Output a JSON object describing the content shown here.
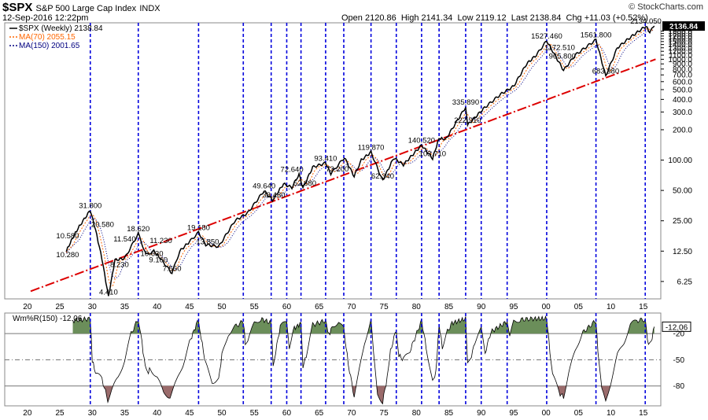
{
  "header": {
    "symbol": "$SPX",
    "name": "S&P 500 Large Cap Index",
    "exchange": "INDX",
    "date": "12-Sep-2016 12:22pm",
    "open": "Open 2120.86",
    "high": "High 2141.34",
    "low": "Low 2119.12",
    "last": "Last 2138.84",
    "chg": "Chg +11.03 (+0.52%)",
    "up_arrow": "▲",
    "brand": "© StockCharts.com"
  },
  "legend": [
    {
      "text": "$SPX (Weekly) 2138.84",
      "color": "#000000"
    },
    {
      "text": "MA(70) 2055.15",
      "color": "#ff6600"
    },
    {
      "text": "MA(150) 2001.65",
      "color": "#000080"
    }
  ],
  "indicator": {
    "label": "Wm%R(150) -12.06",
    "value_box": "-12.06",
    "fill_color": "#6b8e5a",
    "low_fill_color": "#9a6b6b"
  },
  "colors": {
    "vline": "#0000dd",
    "trend": "#dd0000",
    "price": "#000000",
    "ma70": "#ff6600",
    "ma150": "#000080"
  },
  "chart_data": [
    {
      "type": "line",
      "title": "$SPX S&P 500 Large Cap Index INDX",
      "y_scale": "log",
      "ylim": [
        4.2,
        2300
      ],
      "y_ticks": [
        "2136.84",
        "1900.0",
        "1800.0",
        "1700.0",
        "1600.0",
        "1500.0",
        "1400.0",
        "1300.0",
        "1200.0",
        "1100.0",
        "1000.0",
        "900.0",
        "800.0",
        "700.0",
        "600.0",
        "500.0",
        "400.0",
        "300.0",
        "200.0",
        "100.00",
        "50.00",
        "25.00",
        "12.50",
        "6.25"
      ],
      "y_tick_values": [
        2136.84,
        1900,
        1800,
        1700,
        1600,
        1500,
        1400,
        1300,
        1200,
        1100,
        1000,
        900,
        800,
        700,
        600,
        500,
        400,
        300,
        200,
        100,
        50,
        25,
        12.5,
        6.25
      ],
      "x_tick_labels": [
        "20",
        "25",
        "30",
        "35",
        "40",
        "45",
        "50",
        "55",
        "60",
        "65",
        "70",
        "75",
        "80",
        "85",
        "90",
        "95",
        "00",
        "05",
        "10",
        "15"
      ],
      "x_tick_years": [
        1920,
        1925,
        1930,
        1935,
        1940,
        1945,
        1950,
        1955,
        1960,
        1965,
        1970,
        1975,
        1980,
        1985,
        1990,
        1995,
        2000,
        2005,
        2010,
        2015
      ],
      "series": [
        {
          "name": "$SPX (Weekly)",
          "x": [
            1926,
            1927,
            1928,
            1929.7,
            1930.5,
            1931.5,
            1932.5,
            1933.5,
            1935,
            1937.1,
            1938.3,
            1939.5,
            1940.5,
            1942.3,
            1943.5,
            1945,
            1946.4,
            1947.5,
            1949.5,
            1952,
            1954,
            1956.5,
            1957.8,
            1959.5,
            1960.8,
            1961.9,
            1962.5,
            1964,
            1966,
            1966.8,
            1968.9,
            1970.4,
            1971.5,
            1973,
            1974.8,
            1976.5,
            1978,
            1980.8,
            1982.5,
            1983.5,
            1984.5,
            1987.6,
            1987.9,
            1990.5,
            1993,
            1995,
            1997,
            1998.5,
            2000.1,
            2002.7,
            2004.5,
            2007.7,
            2009.2,
            2011,
            2013,
            2015.4,
            2016,
            2016.7
          ],
          "values": [
            12.5,
            17,
            22,
            31.8,
            20.5,
            10.5,
            4.41,
            10.2,
            10.6,
            18.62,
            11.5,
            12.5,
            10.6,
            7.55,
            12.5,
            15.5,
            19.18,
            14.5,
            13.85,
            25,
            30,
            49.64,
            40,
            58,
            53.48,
            72.64,
            52.68,
            85,
            93.41,
            73.2,
            106,
            69,
            100,
            119.87,
            62.34,
            105,
            90,
            140.52,
            103.71,
            165,
            160,
            335.89,
            222.91,
            330,
            450,
            540,
            900,
            1100,
            1527.46,
            776.76,
            1100,
            1561.8,
            683.38,
            1300,
            1650,
            2134.05,
            1850,
            2138.84
          ]
        },
        {
          "name": "MA(70)",
          "values": [
            2055.15
          ]
        },
        {
          "name": "MA(150)",
          "values": [
            2001.65
          ]
        }
      ],
      "annotations": [
        {
          "x": 1929.7,
          "y": 31.8,
          "label": "31.800"
        },
        {
          "x": 1931.6,
          "y": 20.58,
          "label": "20.580"
        },
        {
          "x": 1926.2,
          "y": 15.9,
          "label": "10.580"
        },
        {
          "x": 1926.2,
          "y": 10.28,
          "label": "10.280"
        },
        {
          "x": 1932.5,
          "y": 4.41,
          "label": "4.410"
        },
        {
          "x": 1935.0,
          "y": 14.8,
          "label": "11.540"
        },
        {
          "x": 1934.2,
          "y": 8.23,
          "label": "8.230"
        },
        {
          "x": 1937.1,
          "y": 18.62,
          "label": "18.620"
        },
        {
          "x": 1940.6,
          "y": 14.3,
          "label": "11.230"
        },
        {
          "x": 1939.2,
          "y": 10.63,
          "label": "10.630"
        },
        {
          "x": 1940.2,
          "y": 9.16,
          "label": "9.160"
        },
        {
          "x": 1942.3,
          "y": 7.55,
          "label": "7.550"
        },
        {
          "x": 1946.4,
          "y": 19.18,
          "label": "19.180"
        },
        {
          "x": 1947.8,
          "y": 13.85,
          "label": "13.850"
        },
        {
          "x": 1956.5,
          "y": 49.64,
          "label": "49.640"
        },
        {
          "x": 1958.0,
          "y": 40.5,
          "label": "33.480"
        },
        {
          "x": 1960.8,
          "y": 72.64,
          "label": "72.640"
        },
        {
          "x": 1962.8,
          "y": 52.68,
          "label": "52.680"
        },
        {
          "x": 1966.0,
          "y": 93.41,
          "label": "93.410"
        },
        {
          "x": 1967.8,
          "y": 73.2,
          "label": "73.200"
        },
        {
          "x": 1973.0,
          "y": 119.87,
          "label": "119.870"
        },
        {
          "x": 1974.8,
          "y": 62.34,
          "label": "62.340"
        },
        {
          "x": 1980.8,
          "y": 140.52,
          "label": "140.520"
        },
        {
          "x": 1982.5,
          "y": 103.71,
          "label": "103.710"
        },
        {
          "x": 1987.6,
          "y": 335.89,
          "label": "335.890"
        },
        {
          "x": 1987.9,
          "y": 222.91,
          "label": "222.910"
        },
        {
          "x": 2000.1,
          "y": 1527.46,
          "label": "1527.460"
        },
        {
          "x": 2002.1,
          "y": 1172.51,
          "label": "1172.510"
        },
        {
          "x": 2002.5,
          "y": 965.8,
          "label": "965.800"
        },
        {
          "x": 2007.7,
          "y": 1561.8,
          "label": "1561.800"
        },
        {
          "x": 2009.2,
          "y": 683.38,
          "label": "683.380"
        },
        {
          "x": 2015.4,
          "y": 2134.05,
          "label": "2134.050"
        }
      ],
      "trend_line": {
        "x": [
          1920.5,
          2016.9
        ],
        "y": [
          5.0,
          1000
        ]
      },
      "vertical_lines_x": [
        1929.7,
        1937.1,
        1946.4,
        1953.3,
        1957.6,
        1960.0,
        1962.2,
        1966.0,
        1968.8,
        1973.0,
        1976.9,
        1980.8,
        1983.5,
        1987.6,
        1990.0,
        1994.0,
        2000.1,
        2007.7,
        2015.3
      ]
    },
    {
      "type": "line",
      "title": "Wm%R(150) -12.06",
      "ylim": [
        -100,
        0
      ],
      "y_ticks": [
        "-12.06",
        "-20",
        "-50",
        "-80"
      ],
      "y_tick_values": [
        -12.06,
        -20,
        -50,
        -80
      ],
      "x_tick_labels": [
        "20",
        "25",
        "30",
        "35",
        "40",
        "45",
        "50",
        "55",
        "60",
        "65",
        "70",
        "75",
        "80",
        "85",
        "90",
        "95",
        "00",
        "05",
        "10",
        "15"
      ],
      "series": [
        {
          "name": "Wm%R(150)",
          "x": [
            1927,
            1929.7,
            1930,
            1930.5,
            1931.5,
            1932.4,
            1933,
            1934,
            1935,
            1936,
            1937.1,
            1937.5,
            1938,
            1938.5,
            1939,
            1940,
            1941,
            1942,
            1943,
            1944,
            1945,
            1946.4,
            1946.8,
            1947.5,
            1948.5,
            1949.5,
            1950,
            1951,
            1952,
            1953.3,
            1953.6,
            1954,
            1955,
            1956,
            1957.6,
            1957.9,
            1958.3,
            1959,
            1960,
            1960.4,
            1961,
            1962.2,
            1962.5,
            1963,
            1964,
            1966,
            1966.5,
            1967,
            1968,
            1968.8,
            1969.5,
            1970.4,
            1971,
            1972,
            1973,
            1973.4,
            1974,
            1974.8,
            1975.5,
            1976,
            1976.9,
            1977.3,
            1978,
            1979,
            1980.8,
            1981.5,
            1982.5,
            1983,
            1983.5,
            1984,
            1984.6,
            1985.5,
            1987.6,
            1987.9,
            1988.5,
            1989,
            1990,
            1990.6,
            1991.5,
            1994,
            1994.4,
            1995,
            1996,
            1998,
            2000.1,
            2000.6,
            2001,
            2002,
            2002.7,
            2003.5,
            2004.5,
            2005.5,
            2007.7,
            2008,
            2008.6,
            2009.2,
            2010,
            2011,
            2012,
            2013,
            2014,
            2015.3,
            2015.8,
            2016.2,
            2016.7
          ],
          "values": [
            -5,
            -3,
            -50,
            -65,
            -72,
            -96,
            -85,
            -70,
            -50,
            -20,
            -3,
            -20,
            -50,
            -65,
            -60,
            -70,
            -88,
            -92,
            -75,
            -55,
            -30,
            -3,
            -25,
            -55,
            -75,
            -72,
            -45,
            -20,
            -12,
            -6,
            -30,
            -28,
            -8,
            -3,
            -8,
            -55,
            -40,
            -12,
            -6,
            -35,
            -15,
            -8,
            -58,
            -45,
            -10,
            -5,
            -22,
            -12,
            -6,
            -15,
            -55,
            -92,
            -70,
            -30,
            -4,
            -45,
            -90,
            -98,
            -70,
            -40,
            -15,
            -45,
            -50,
            -40,
            -5,
            -35,
            -75,
            -65,
            -10,
            -35,
            -20,
            -8,
            -3,
            -55,
            -45,
            -30,
            -15,
            -42,
            -18,
            -6,
            -25,
            -6,
            -4,
            -3,
            -3,
            -40,
            -65,
            -88,
            -92,
            -65,
            -40,
            -20,
            -5,
            -40,
            -85,
            -98,
            -75,
            -45,
            -30,
            -10,
            -5,
            -4,
            -35,
            -30,
            -12.06
          ]
        }
      ],
      "reference_lines": [
        -20,
        -50,
        -80
      ]
    }
  ]
}
